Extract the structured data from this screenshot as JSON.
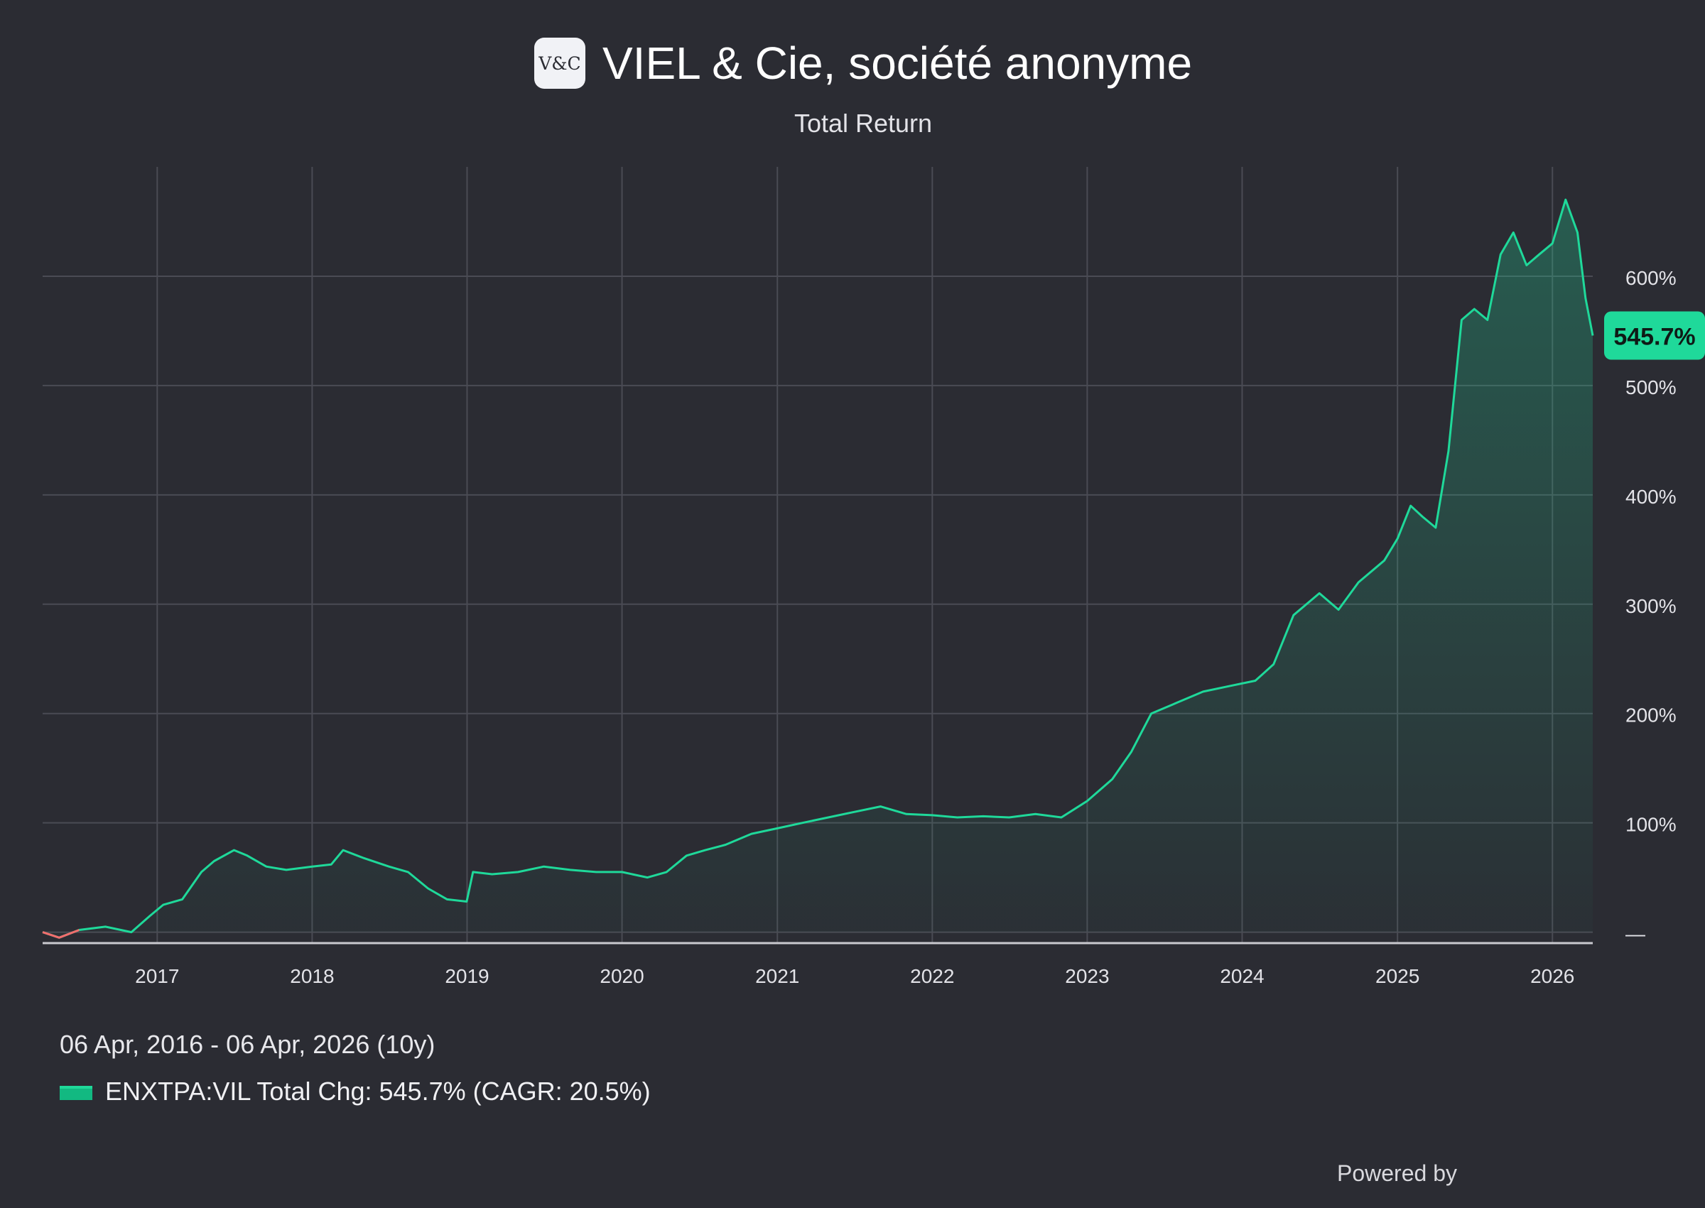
{
  "header": {
    "logo_text": "V&C",
    "title": "VIEL & Cie, société anonyme",
    "subtitle": "Total Return"
  },
  "footer": {
    "date_range": "06 Apr, 2016 - 06 Apr, 2026 (10y)",
    "legend_label": "ENXTPA:VIL Total Chg: 545.7% (CAGR: 20.5%)",
    "powered_by": "Powered by"
  },
  "colors": {
    "background": "#2b2c33",
    "line_positive": "#1fd99a",
    "line_negative": "#f26d6d",
    "badge": "#1fd99a",
    "grid": "#4a4b54"
  },
  "chart_data": {
    "type": "area",
    "series": [
      {
        "name": "ENXTPA:VIL",
        "x": [
          "2016-04-06",
          "2016-05-15",
          "2016-07-01",
          "2016-09-01",
          "2016-11-01",
          "2016-12-15",
          "2017-01-15",
          "2017-03-01",
          "2017-04-15",
          "2017-05-15",
          "2017-07-01",
          "2017-08-01",
          "2017-09-15",
          "2017-11-01",
          "2018-01-01",
          "2018-02-15",
          "2018-03-15",
          "2018-05-01",
          "2018-07-01",
          "2018-08-15",
          "2018-10-01",
          "2018-11-15",
          "2018-12-31",
          "2019-01-15",
          "2019-03-01",
          "2019-05-01",
          "2019-07-01",
          "2019-09-01",
          "2019-11-01",
          "2020-01-01",
          "2020-03-01",
          "2020-04-15",
          "2020-06-01",
          "2020-07-15",
          "2020-09-01",
          "2020-11-01",
          "2021-01-01",
          "2021-03-01",
          "2021-05-01",
          "2021-07-01",
          "2021-09-01",
          "2021-11-01",
          "2022-01-01",
          "2022-03-01",
          "2022-05-01",
          "2022-07-01",
          "2022-09-01",
          "2022-11-01",
          "2023-01-01",
          "2023-03-01",
          "2023-04-15",
          "2023-06-01",
          "2023-08-01",
          "2023-10-01",
          "2023-12-01",
          "2024-02-01",
          "2024-03-15",
          "2024-05-01",
          "2024-07-01",
          "2024-08-15",
          "2024-10-01",
          "2024-12-01",
          "2025-01-01",
          "2025-02-01",
          "2025-03-01",
          "2025-04-01",
          "2025-05-01",
          "2025-06-01",
          "2025-07-01",
          "2025-08-01",
          "2025-09-01",
          "2025-10-01",
          "2025-11-01",
          "2025-12-01",
          "2026-01-01",
          "2026-02-01",
          "2026-03-01",
          "2026-03-20",
          "2026-04-06"
        ],
        "values": [
          0,
          -5,
          2,
          5,
          0,
          15,
          25,
          30,
          55,
          65,
          75,
          70,
          60,
          57,
          60,
          62,
          75,
          68,
          60,
          55,
          40,
          30,
          28,
          55,
          53,
          55,
          60,
          57,
          55,
          55,
          50,
          55,
          70,
          75,
          80,
          90,
          95,
          100,
          105,
          110,
          115,
          108,
          107,
          105,
          106,
          105,
          108,
          105,
          120,
          140,
          165,
          200,
          210,
          220,
          225,
          230,
          245,
          290,
          310,
          295,
          320,
          340,
          360,
          390,
          380,
          370,
          440,
          560,
          570,
          560,
          620,
          640,
          610,
          620,
          630,
          670,
          640,
          580,
          545.7
        ]
      }
    ],
    "x_ticks": [
      "2017",
      "2018",
      "2019",
      "2020",
      "2021",
      "2022",
      "2023",
      "2024",
      "2025",
      "2026"
    ],
    "y_ticks": [
      "—",
      "100%",
      "200%",
      "300%",
      "400%",
      "500%",
      "600%"
    ],
    "y_tick_values": [
      0,
      100,
      200,
      300,
      400,
      500,
      600
    ],
    "ylim": [
      -10,
      700
    ],
    "xlim": [
      "2016-04-06",
      "2026-04-06"
    ],
    "last_value_label": "545.7%",
    "grid": true
  }
}
